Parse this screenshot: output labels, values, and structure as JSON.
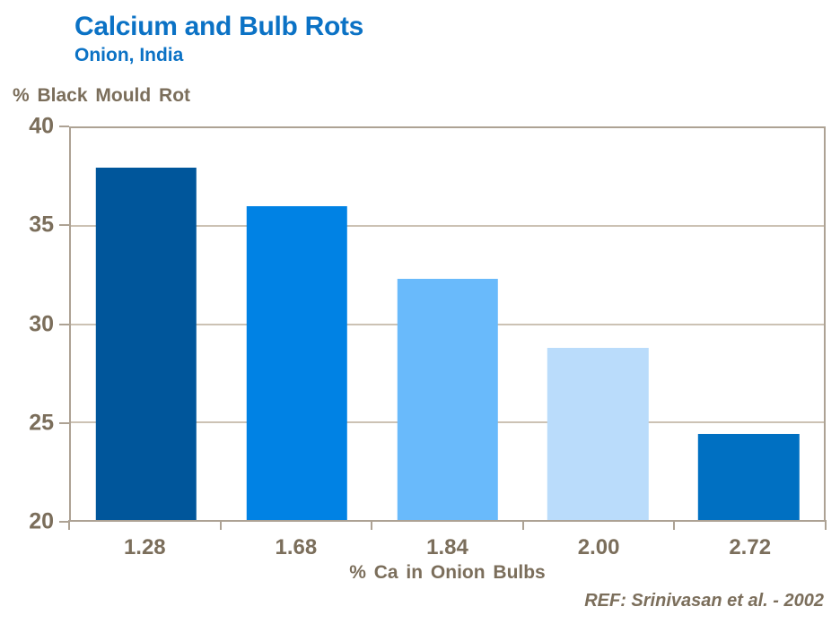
{
  "header": {
    "title": "Calcium and Bulb Rots",
    "subtitle": "Onion, India"
  },
  "chart_data": {
    "type": "bar",
    "title": "Calcium and Bulb Rots",
    "subtitle": "Onion, India",
    "categories": [
      "1.28",
      "1.68",
      "1.84",
      "2.00",
      "2.72"
    ],
    "values": [
      38.0,
      36.0,
      32.3,
      28.8,
      24.4
    ],
    "bar_colors": [
      "#00569b",
      "#0082e4",
      "#69bafb",
      "#badcfb",
      "#0070c2"
    ],
    "xlabel": "% Ca in Onion Bulbs",
    "ylabel": "% Black Mould Rot",
    "ylim": [
      20,
      40
    ],
    "yticks": [
      40,
      35,
      30,
      25,
      20
    ],
    "grid": "horizontal",
    "legend": "none",
    "bar_width_fraction": 0.67
  },
  "footer": {
    "reference": "REF: Srinivasan et al. - 2002"
  },
  "colors": {
    "title_text": "#0b72c5",
    "axis_text": "#7b6e5b",
    "plot_border": "#ada294",
    "gridline": "#ccc2b4",
    "background": "#ffffff"
  }
}
